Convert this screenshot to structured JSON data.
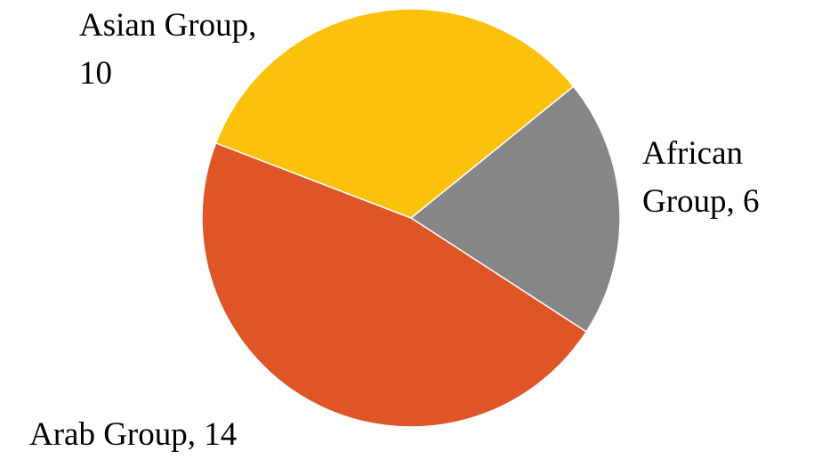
{
  "chart_data": {
    "type": "pie",
    "values": [
      6,
      14,
      10
    ],
    "value_labels": [
      "African Group, 6",
      "Arab Group, 14",
      "Asian Group, 10"
    ],
    "colors": [
      "#868686",
      "#e05526",
      "#fcc10b"
    ]
  }
}
